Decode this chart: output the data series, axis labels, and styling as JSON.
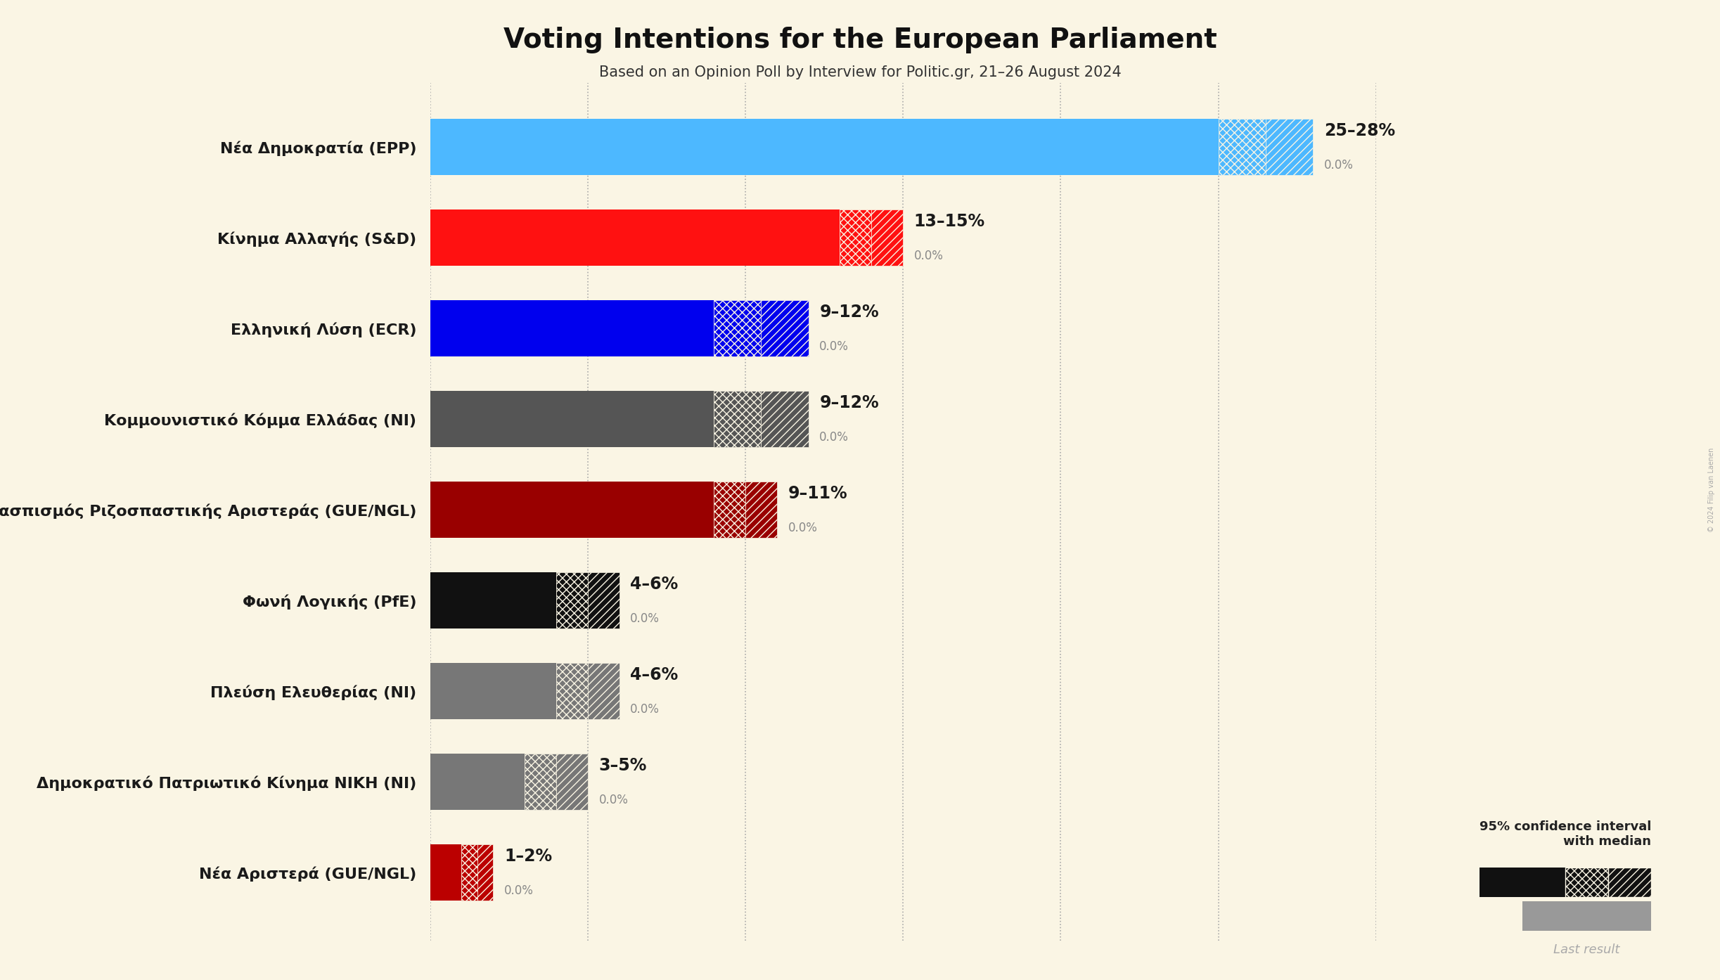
{
  "title": "Voting Intentions for the European Parliament",
  "subtitle": "Based on an Opinion Poll by Interview for Politic.gr, 21–26 August 2024",
  "background_color": "#faf5e4",
  "parties": [
    {
      "name": "Νέα Δημοκρατία (EPP)",
      "low": 25,
      "high": 28,
      "last": 0.0,
      "color": "#4db8ff"
    },
    {
      "name": "Κίνημα Αλλαγής (S&D)",
      "low": 13,
      "high": 15,
      "last": 0.0,
      "color": "#ff1111"
    },
    {
      "name": "Ελληνική Λύση (ECR)",
      "low": 9,
      "high": 12,
      "last": 0.0,
      "color": "#0000ee"
    },
    {
      "name": "Κομμουνιστικό Κόμμα Ελλάδας (NI)",
      "low": 9,
      "high": 12,
      "last": 0.0,
      "color": "#555555"
    },
    {
      "name": "Συνασπισμός Ριζοσπαστικής Αριστεράς (GUE/NGL)",
      "low": 9,
      "high": 11,
      "last": 0.0,
      "color": "#990000"
    },
    {
      "name": "Φωνή Λογικής (PfE)",
      "low": 4,
      "high": 6,
      "last": 0.0,
      "color": "#111111"
    },
    {
      "name": "Πλεύση Ελευθερίας (NI)",
      "low": 4,
      "high": 6,
      "last": 0.0,
      "color": "#777777"
    },
    {
      "name": "Δημοκρατικό Πατριωτικό Κίνημα ΝΙΚΗ (NI)",
      "low": 3,
      "high": 5,
      "last": 0.0,
      "color": "#777777"
    },
    {
      "name": "Νέα Αριστερά (GUE/NGL)",
      "low": 1,
      "high": 2,
      "last": 0.0,
      "color": "#bb0000"
    }
  ],
  "xlim_max": 30,
  "grid_ticks": [
    0,
    5,
    10,
    15,
    20,
    25,
    30
  ],
  "title_fontsize": 28,
  "subtitle_fontsize": 15,
  "party_label_fontsize": 16,
  "range_label_fontsize": 17,
  "last_label_fontsize": 12,
  "bar_height": 0.62,
  "copyright_text": "© 2024 Filip van Laenen"
}
